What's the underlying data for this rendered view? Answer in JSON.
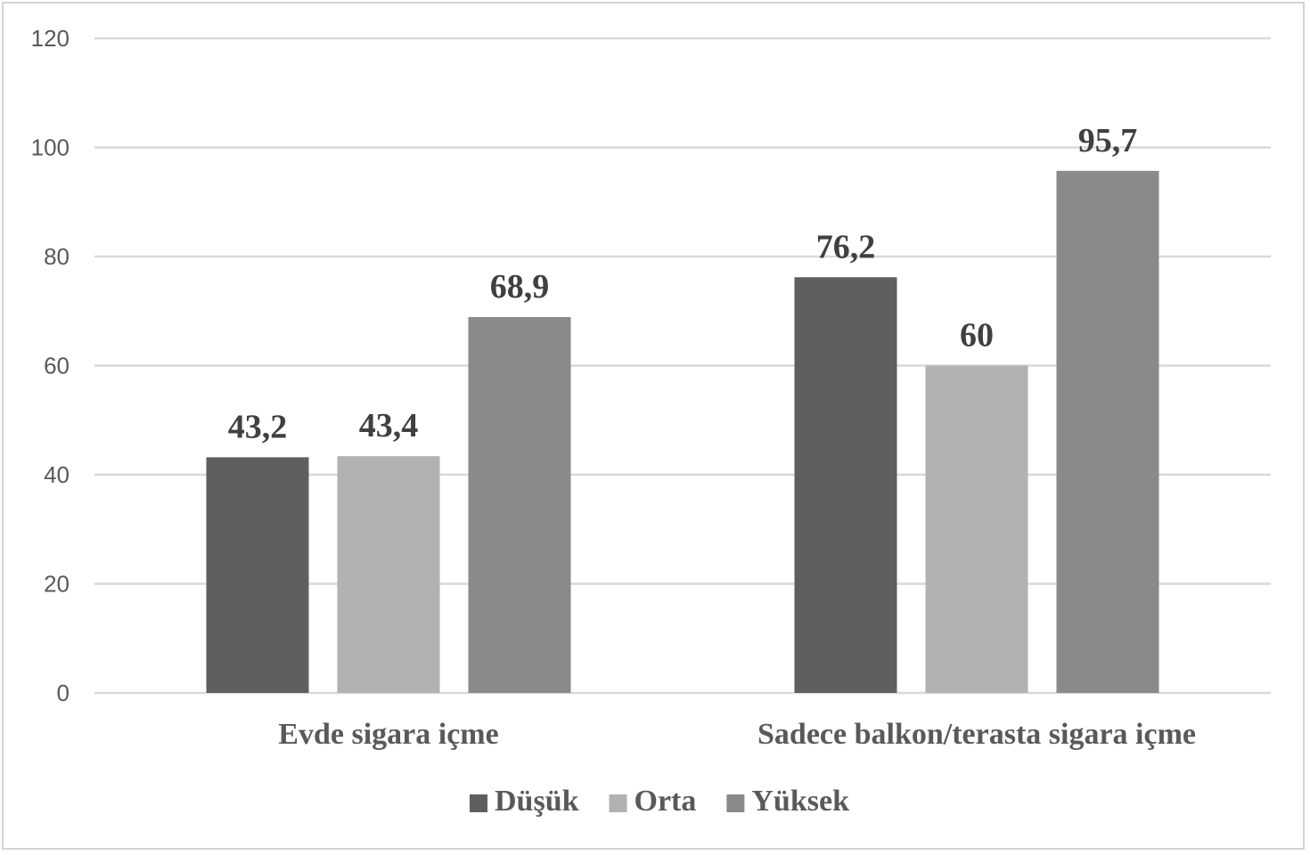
{
  "chart_data": {
    "type": "bar",
    "categories": [
      "Evde sigara içme",
      "Sadece balkon/terasta sigara içme"
    ],
    "series": [
      {
        "name": "Düşük",
        "values": [
          43.2,
          76.2
        ],
        "labels": [
          "43,2",
          "76,2"
        ],
        "color": "#5f5f5f"
      },
      {
        "name": "Orta",
        "values": [
          43.4,
          60
        ],
        "labels": [
          "43,4",
          "60"
        ],
        "color": "#b2b2b2"
      },
      {
        "name": "Yüksek",
        "values": [
          68.9,
          95.7
        ],
        "labels": [
          "68,9",
          "95,7"
        ],
        "color": "#8a8a8a"
      }
    ],
    "ylim": [
      0,
      120
    ],
    "yticks": [
      0,
      20,
      40,
      60,
      80,
      100,
      120
    ],
    "grid": true,
    "legend_position": "bottom"
  }
}
